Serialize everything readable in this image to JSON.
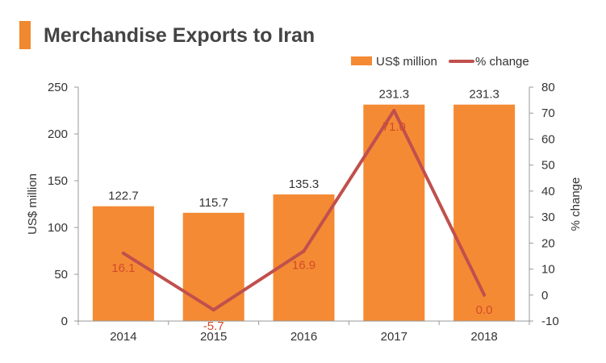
{
  "title": "Merchandise Exports to Iran",
  "colors": {
    "bar": "#f58a34",
    "line": "#c0504d",
    "accent": "#f0882f",
    "text": "#333333",
    "line_label": "#d24b2a"
  },
  "legend": [
    {
      "label": "US$ million",
      "type": "bar"
    },
    {
      "label": "% change",
      "type": "line"
    }
  ],
  "chart_data": {
    "type": "bar",
    "categories": [
      "2014",
      "2015",
      "2016",
      "2017",
      "2018"
    ],
    "series": [
      {
        "name": "US$ million",
        "type": "bar",
        "axis": "left",
        "values": [
          122.7,
          115.7,
          135.3,
          231.3,
          231.3
        ],
        "labels": [
          "122.7",
          "115.7",
          "135.3",
          "231.3",
          "231.3"
        ]
      },
      {
        "name": "% change",
        "type": "line",
        "axis": "right",
        "values": [
          16.1,
          -5.7,
          16.9,
          71.0,
          0.0
        ],
        "labels": [
          "16.1",
          "-5.7",
          "16.9",
          "71.0",
          "0.0"
        ]
      }
    ],
    "title": "Merchandise Exports to Iran",
    "ylabel": "US$ million",
    "y2label": "% change",
    "ylim": [
      0,
      250
    ],
    "y2lim": [
      -10,
      80
    ],
    "yticks": [
      "0",
      "50",
      "100",
      "150",
      "200",
      "250"
    ],
    "y2ticks": [
      "-10",
      "0",
      "10",
      "20",
      "30",
      "40",
      "50",
      "60",
      "70",
      "80"
    ],
    "grid": false,
    "legend_position": "top-right"
  }
}
